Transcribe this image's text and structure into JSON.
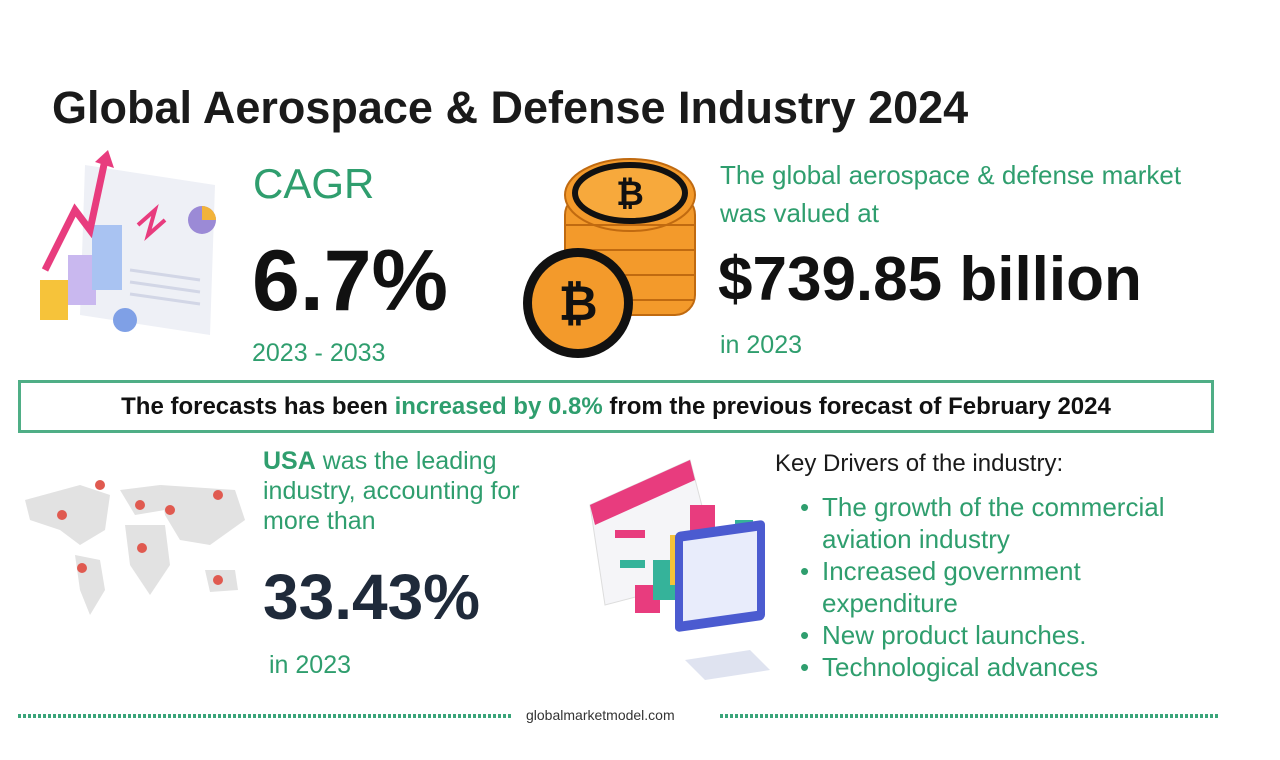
{
  "title": "Global Aerospace & Defense Industry 2024",
  "cagr": {
    "label": "CAGR",
    "value": "6.7%",
    "period": "2023 - 2033"
  },
  "market": {
    "desc_line1": "The global aerospace & defense market",
    "desc_line2": "was valued at",
    "value": "$739.85 billion",
    "year": "in 2023"
  },
  "banner": {
    "part1": "The forecasts has been ",
    "highlight": "increased by 0.8%",
    "part2": " from the previous forecast of February 2024"
  },
  "usa": {
    "country": "USA",
    "text": " was the leading industry, accounting for more than",
    "value": "33.43%",
    "year": "in 2023"
  },
  "drivers": {
    "title": "Key Drivers of the industry:",
    "items": [
      "The growth of the commercial aviation industry",
      "Increased government expenditure",
      "New product launches.",
      "Technological advances"
    ]
  },
  "footer": "globalmarketmodel.com",
  "colors": {
    "accent": "#2f9e6e",
    "coin": "#f39a2b",
    "dark": "#1f2a3a"
  }
}
